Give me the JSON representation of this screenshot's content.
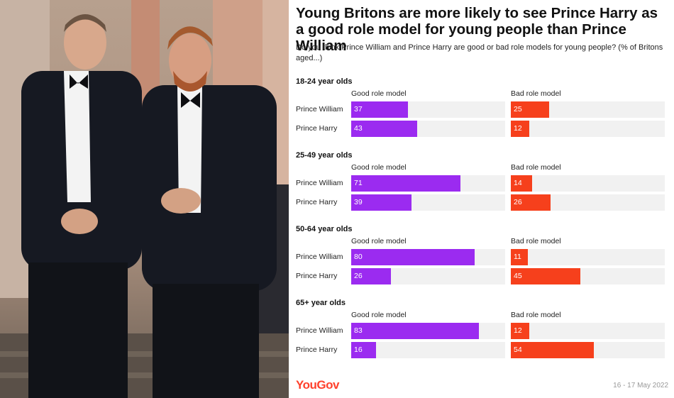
{
  "header": {
    "title": "Young Britons are more likely to see Prince Harry as a good role model for young people than Prince William",
    "subtitle": "Do you think Prince William and Prince Harry are good or bad role models for young people? (% of Britons aged...)"
  },
  "footer": {
    "brand": "YouGov",
    "date": "16 - 17 May 2022"
  },
  "colors": {
    "good": "#9b2bf0",
    "bad": "#f6401c",
    "track": "#f1f1f1",
    "brand": "#ff412c"
  },
  "chart_data": {
    "type": "bar",
    "orientation": "horizontal",
    "xlim": [
      0,
      100
    ],
    "columns": [
      "Good role model",
      "Bad role model"
    ],
    "groups": [
      {
        "label": "18-24 year olds",
        "rows": [
          {
            "name": "Prince William",
            "good": 37,
            "bad": 25
          },
          {
            "name": "Prince Harry",
            "good": 43,
            "bad": 12
          }
        ]
      },
      {
        "label": "25-49 year olds",
        "rows": [
          {
            "name": "Prince William",
            "good": 71,
            "bad": 14
          },
          {
            "name": "Prince Harry",
            "good": 39,
            "bad": 26
          }
        ]
      },
      {
        "label": "50-64 year olds",
        "rows": [
          {
            "name": "Prince William",
            "good": 80,
            "bad": 11
          },
          {
            "name": "Prince Harry",
            "good": 26,
            "bad": 45
          }
        ]
      },
      {
        "label": "65+ year olds",
        "rows": [
          {
            "name": "Prince William",
            "good": 83,
            "bad": 12
          },
          {
            "name": "Prince Harry",
            "good": 16,
            "bad": 54
          }
        ]
      }
    ]
  }
}
